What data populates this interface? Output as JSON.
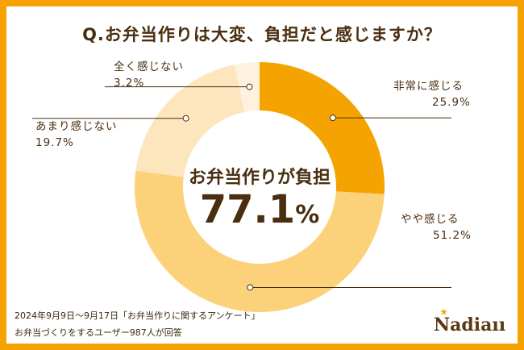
{
  "title": "Q.お弁当作りは大変、負担だと感じますか？",
  "center": {
    "label": "お弁当作りが負担",
    "value": "77.1",
    "unit": "%"
  },
  "footer": {
    "line1": "2024年9月9日～9月17日「お弁当作りに関するアンケート」",
    "line2": "お弁当づくりをするユーザー987人が回答"
  },
  "logo": "Nadia",
  "colors": {
    "frame": "#F5A300",
    "text": "#4A2E10"
  },
  "chart_data": {
    "type": "pie",
    "donut": true,
    "start": "12 o'clock, clockwise",
    "slices": [
      {
        "label": "非常に感じる",
        "value": 25.9,
        "value_label": "25.9%",
        "color": "#F5A300"
      },
      {
        "label": "やや感じる",
        "value": 51.2,
        "value_label": "51.2%",
        "color": "#FBD27A"
      },
      {
        "label": "あまり感じない",
        "value": 19.7,
        "value_label": "19.7%",
        "color": "#FDE5BE"
      },
      {
        "label": "全く感じない",
        "value": 3.2,
        "value_label": "3.2%",
        "color": "#FEF2DF"
      }
    ]
  }
}
